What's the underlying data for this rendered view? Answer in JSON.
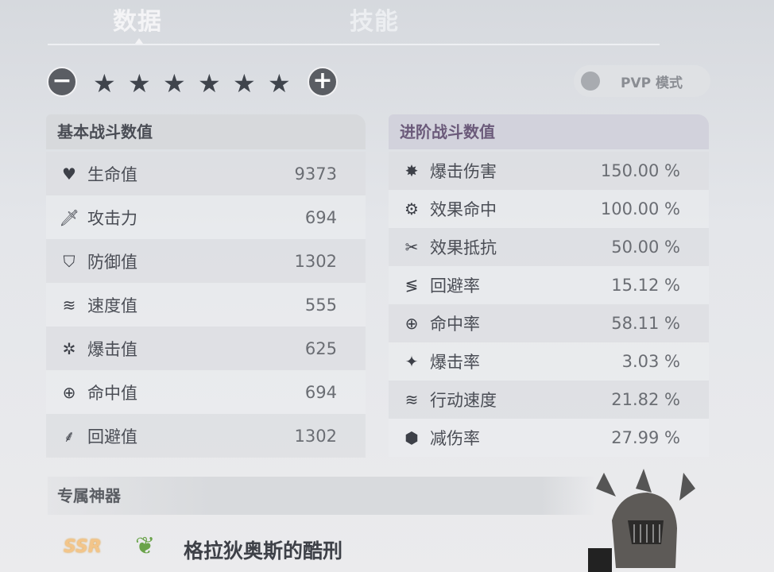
{
  "tabs": [
    {
      "label": "数据",
      "active": true
    },
    {
      "label": "技能",
      "active": false
    }
  ],
  "stars": {
    "count": 6,
    "minus_icon": "minus-icon",
    "plus_icon": "plus-icon"
  },
  "pvp": {
    "label": "PVP 模式",
    "enabled": false
  },
  "basic": {
    "title": "基本战斗数值",
    "rows": [
      {
        "icon": "heart-icon",
        "label": "生命值",
        "value": "9373"
      },
      {
        "icon": "sword-icon",
        "label": "攻击力",
        "value": "694"
      },
      {
        "icon": "shield-icon",
        "label": "防御值",
        "value": "1302"
      },
      {
        "icon": "speed-icon",
        "label": "速度值",
        "value": "555"
      },
      {
        "icon": "crit-icon",
        "label": "爆击值",
        "value": "625"
      },
      {
        "icon": "crosshair-icon",
        "label": "命中值",
        "value": "694"
      },
      {
        "icon": "feather-icon",
        "label": "回避值",
        "value": "1302"
      }
    ]
  },
  "advanced": {
    "title": "进阶战斗数值",
    "rows": [
      {
        "icon": "crit-damage-icon",
        "label": "爆击伤害",
        "value": "150.00 %"
      },
      {
        "icon": "gear-icon",
        "label": "效果命中",
        "value": "100.00 %"
      },
      {
        "icon": "resist-icon",
        "label": "效果抵抗",
        "value": "50.00 %"
      },
      {
        "icon": "evade-icon",
        "label": "回避率",
        "value": "15.12 %"
      },
      {
        "icon": "crosshair-icon",
        "label": "命中率",
        "value": "58.11 %"
      },
      {
        "icon": "sparkle-icon",
        "label": "爆击率",
        "value": "3.03 %"
      },
      {
        "icon": "speed-icon",
        "label": "行动速度",
        "value": "21.82 %"
      },
      {
        "icon": "damage-reduction-icon",
        "label": "减伤率",
        "value": "27.99 %"
      }
    ]
  },
  "artifact": {
    "section_title": "专属神器",
    "rarity": "SSR",
    "name": "格拉狄奥斯的酷刑"
  }
}
